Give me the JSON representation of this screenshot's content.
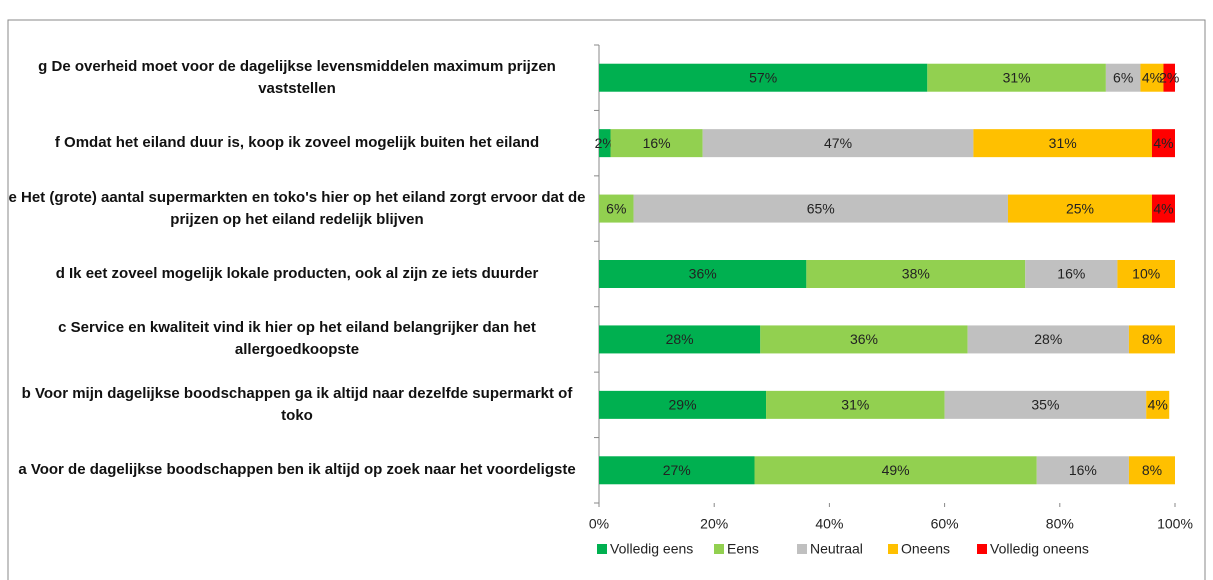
{
  "chart_data": {
    "type": "stacked_bar_horizontal",
    "categories": [
      "g De overheid moet voor de dagelijkse levensmiddelen maximum prijzen vaststellen",
      "f Omdat het eiland duur is, koop ik zoveel mogelijk buiten het eiland",
      "e Het (grote) aantal supermarkten en toko's hier op het eiland zorgt ervoor dat de prijzen op het eiland redelijk blijven",
      "d Ik eet zoveel mogelijk lokale producten, ook al zijn ze iets duurder",
      "c Service en kwaliteit vind ik hier op het eiland belangrijker dan het allergoedkoopste",
      "b Voor mijn dagelijkse boodschappen ga ik altijd naar dezelfde supermarkt of toko",
      "a Voor de dagelijkse boodschappen ben ik altijd op zoek naar het voordeligste"
    ],
    "series": [
      {
        "name": "Volledig eens",
        "color": "#00b050",
        "values": [
          57,
          2,
          null,
          36,
          28,
          29,
          27
        ],
        "value_labels": [
          "57%",
          "2%",
          null,
          "36%",
          "28%",
          "29%",
          "27%"
        ]
      },
      {
        "name": "Eens",
        "color": "#92d050",
        "values": [
          31,
          16,
          6,
          38,
          36,
          31,
          49
        ],
        "value_labels": [
          "31%",
          "16%",
          "6%",
          "38%",
          "36%",
          "31%",
          "49%"
        ]
      },
      {
        "name": "Neutraal",
        "color": "#c0c0c0",
        "values": [
          6,
          47,
          65,
          16,
          28,
          35,
          16
        ],
        "value_labels": [
          "6%",
          "47%",
          "65%",
          "16%",
          "28%",
          "35%",
          "16%"
        ]
      },
      {
        "name": "Oneens",
        "color": "#ffc000",
        "values": [
          4,
          31,
          25,
          10,
          8,
          4,
          8
        ],
        "value_labels": [
          "4%",
          "31%",
          "25%",
          "10%",
          "8%",
          "4%",
          "8%"
        ]
      },
      {
        "name": "Volledig oneens",
        "color": "#ff0000",
        "values": [
          2,
          4,
          4,
          null,
          null,
          null,
          null
        ],
        "value_labels": [
          "2%",
          "4%",
          "4%",
          null,
          null,
          null,
          null
        ]
      }
    ],
    "xlim": [
      0,
      100
    ],
    "xticks": [
      {
        "value": 0,
        "label": "0%"
      },
      {
        "value": 20,
        "label": "20%"
      },
      {
        "value": 40,
        "label": "40%"
      },
      {
        "value": 60,
        "label": "60%"
      },
      {
        "value": 80,
        "label": "80%"
      },
      {
        "value": 100,
        "label": "100%"
      }
    ],
    "legend": "bottom"
  }
}
